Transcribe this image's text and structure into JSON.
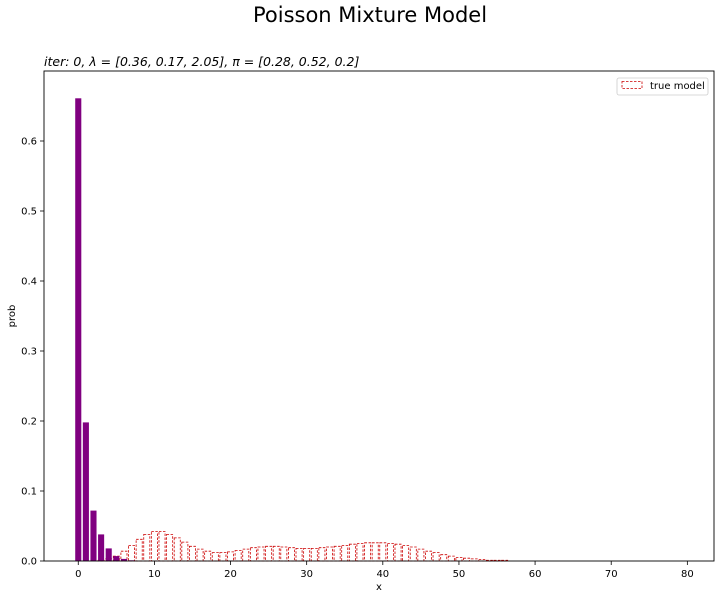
{
  "suptitle": "Poisson Mixture Model",
  "subtitle": "iter: 0, λ = [0.36, 0.17, 2.05], π = [0.28, 0.52, 0.2]",
  "chart_data": {
    "type": "bar",
    "xlabel": "x",
    "ylabel": "prob",
    "xlim": [
      -4.5,
      83.5
    ],
    "ylim": [
      0,
      0.7
    ],
    "xticks": [
      0,
      10,
      20,
      30,
      40,
      50,
      60,
      70,
      80
    ],
    "yticks": [
      0.0,
      0.1,
      0.2,
      0.3,
      0.4,
      0.5,
      0.6
    ],
    "legend": {
      "label": "true model",
      "position": "top-right"
    },
    "colors": {
      "model": "#800080",
      "true": "#cc0000"
    },
    "series": [
      {
        "kind": "model",
        "style": "filled",
        "x": [
          0,
          1,
          2,
          3,
          4,
          5,
          6,
          7
        ],
        "values": [
          0.661,
          0.198,
          0.072,
          0.038,
          0.018,
          0.007,
          0.003,
          0.001
        ]
      },
      {
        "name": "true model",
        "kind": "true",
        "style": "dashed-outline",
        "x": [
          0,
          1,
          2,
          3,
          4,
          5,
          6,
          7,
          8,
          9,
          10,
          11,
          12,
          13,
          14,
          15,
          16,
          17,
          18,
          19,
          20,
          21,
          22,
          23,
          24,
          25,
          26,
          27,
          28,
          29,
          30,
          31,
          32,
          33,
          34,
          35,
          36,
          37,
          38,
          39,
          40,
          41,
          42,
          43,
          44,
          45,
          46,
          47,
          48,
          49,
          50,
          51,
          52,
          53,
          54,
          55,
          56,
          57,
          58,
          59,
          60
        ],
        "values": [
          0.0,
          0.0,
          0.0,
          0.001,
          0.003,
          0.007,
          0.014,
          0.022,
          0.031,
          0.038,
          0.042,
          0.042,
          0.038,
          0.033,
          0.027,
          0.021,
          0.017,
          0.014,
          0.012,
          0.012,
          0.013,
          0.015,
          0.017,
          0.019,
          0.02,
          0.021,
          0.021,
          0.02,
          0.019,
          0.018,
          0.018,
          0.018,
          0.019,
          0.02,
          0.021,
          0.022,
          0.024,
          0.025,
          0.026,
          0.026,
          0.026,
          0.025,
          0.024,
          0.022,
          0.02,
          0.017,
          0.014,
          0.012,
          0.009,
          0.007,
          0.005,
          0.004,
          0.003,
          0.002,
          0.001,
          0.001,
          0.001,
          0.0,
          0.0,
          0.0,
          0.0
        ]
      }
    ]
  }
}
